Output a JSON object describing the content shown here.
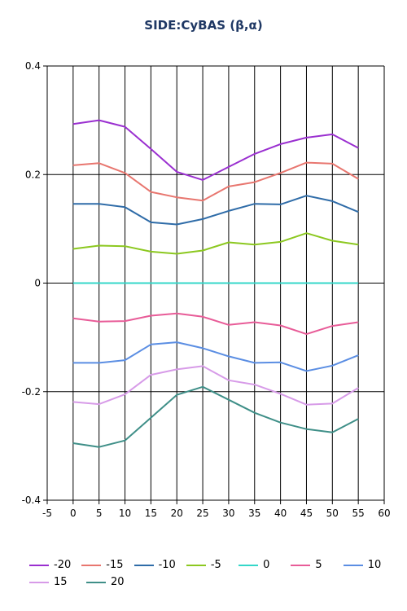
{
  "chart_data": {
    "type": "line",
    "title": "SIDE:CyBAS (β,α)",
    "xlabel": "",
    "ylabel": "",
    "xlim": [
      -5,
      60
    ],
    "ylim": [
      -0.4,
      0.4
    ],
    "x_ticks": [
      "-5",
      "0",
      "5",
      "10",
      "15",
      "20",
      "25",
      "30",
      "35",
      "40",
      "45",
      "50",
      "55",
      "60"
    ],
    "y_ticks": [
      "0.4",
      "0.2",
      "0",
      "-0.2",
      "-0.4"
    ],
    "grid": true,
    "legend_position": "bottom",
    "x": [
      0,
      5,
      10,
      15,
      20,
      25,
      30,
      35,
      40,
      45,
      50,
      55
    ],
    "series": [
      {
        "name": "-20",
        "color": "#9a2fd0",
        "values": [
          0.293,
          0.3,
          0.288,
          0.247,
          0.205,
          0.19,
          0.214,
          0.238,
          0.256,
          0.268,
          0.274,
          0.249
        ]
      },
      {
        "name": "-15",
        "color": "#e8766f",
        "values": [
          0.217,
          0.221,
          0.203,
          0.168,
          0.158,
          0.152,
          0.178,
          0.186,
          0.203,
          0.222,
          0.22,
          0.192
        ]
      },
      {
        "name": "-10",
        "color": "#2f6ca8",
        "values": [
          0.146,
          0.146,
          0.14,
          0.112,
          0.108,
          0.118,
          0.133,
          0.146,
          0.145,
          0.161,
          0.151,
          0.131
        ]
      },
      {
        "name": "-5",
        "color": "#8cc820",
        "values": [
          0.063,
          0.069,
          0.068,
          0.058,
          0.054,
          0.06,
          0.075,
          0.071,
          0.076,
          0.092,
          0.078,
          0.071
        ]
      },
      {
        "name": "0",
        "color": "#34d7c9",
        "values": [
          0,
          0,
          0,
          0,
          0,
          0,
          0,
          0,
          0,
          0,
          0,
          0
        ]
      },
      {
        "name": "5",
        "color": "#e85c98",
        "values": [
          -0.065,
          -0.071,
          -0.07,
          -0.06,
          -0.056,
          -0.062,
          -0.077,
          -0.072,
          -0.078,
          -0.094,
          -0.079,
          -0.072
        ]
      },
      {
        "name": "10",
        "color": "#5b8ee3",
        "values": [
          -0.147,
          -0.147,
          -0.142,
          -0.113,
          -0.109,
          -0.12,
          -0.135,
          -0.147,
          -0.146,
          -0.162,
          -0.152,
          -0.133
        ]
      },
      {
        "name": "15",
        "color": "#d79be8",
        "values": [
          -0.219,
          -0.223,
          -0.205,
          -0.169,
          -0.159,
          -0.153,
          -0.179,
          -0.187,
          -0.204,
          -0.224,
          -0.222,
          -0.193
        ]
      },
      {
        "name": "20",
        "color": "#3f8f88",
        "values": [
          -0.295,
          -0.302,
          -0.29,
          -0.248,
          -0.206,
          -0.191,
          -0.215,
          -0.239,
          -0.257,
          -0.269,
          -0.275,
          -0.25
        ]
      }
    ]
  }
}
